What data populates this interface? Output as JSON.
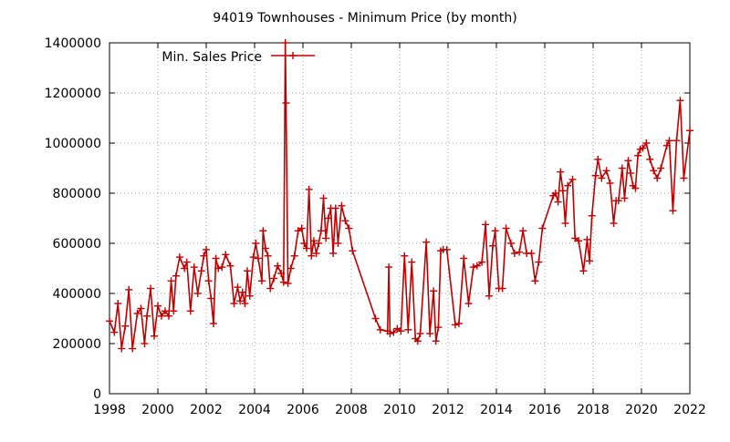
{
  "chart_data": {
    "type": "line",
    "title": "94019 Townhouses - Minimum Price (by month)",
    "xlabel": "",
    "ylabel": "",
    "xlim": [
      1998,
      2022
    ],
    "ylim": [
      0,
      1400000
    ],
    "x_ticks": [
      1998,
      2000,
      2002,
      2004,
      2006,
      2008,
      2010,
      2012,
      2014,
      2016,
      2018,
      2020,
      2022
    ],
    "y_ticks": [
      0,
      200000,
      400000,
      600000,
      800000,
      1000000,
      1200000,
      1400000
    ],
    "x_tick_labels": [
      "1998",
      "2000",
      "2002",
      "2004",
      "2006",
      "2008",
      "2010",
      "2012",
      "2014",
      "2016",
      "2018",
      "2020",
      "2022"
    ],
    "y_tick_labels": [
      "0",
      "200000",
      "400000",
      "600000",
      "800000",
      "1000000",
      "1200000",
      "1400000"
    ],
    "grid": true,
    "legend_position": "top-left",
    "color": "#c00000",
    "series": [
      {
        "name": "Min. Sales Price",
        "points": [
          [
            1998.0,
            290000
          ],
          [
            1998.2,
            245000
          ],
          [
            1998.35,
            360000
          ],
          [
            1998.5,
            180000
          ],
          [
            1998.65,
            270000
          ],
          [
            1998.8,
            415000
          ],
          [
            1998.95,
            180000
          ],
          [
            1999.15,
            320000
          ],
          [
            1999.3,
            340000
          ],
          [
            1999.45,
            200000
          ],
          [
            1999.55,
            310000
          ],
          [
            1999.7,
            420000
          ],
          [
            1999.85,
            230000
          ],
          [
            2000.0,
            350000
          ],
          [
            2000.15,
            310000
          ],
          [
            2000.3,
            330000
          ],
          [
            2000.45,
            310000
          ],
          [
            2000.55,
            450000
          ],
          [
            2000.65,
            330000
          ],
          [
            2000.75,
            470000
          ],
          [
            2000.9,
            545000
          ],
          [
            2001.1,
            500000
          ],
          [
            2001.2,
            525000
          ],
          [
            2001.35,
            330000
          ],
          [
            2001.5,
            505000
          ],
          [
            2001.65,
            400000
          ],
          [
            2001.8,
            490000
          ],
          [
            2001.9,
            550000
          ],
          [
            2002.0,
            575000
          ],
          [
            2002.1,
            450000
          ],
          [
            2002.2,
            380000
          ],
          [
            2002.3,
            280000
          ],
          [
            2002.4,
            540000
          ],
          [
            2002.5,
            500000
          ],
          [
            2002.65,
            505000
          ],
          [
            2002.8,
            555000
          ],
          [
            2003.0,
            510000
          ],
          [
            2003.15,
            360000
          ],
          [
            2003.3,
            425000
          ],
          [
            2003.4,
            370000
          ],
          [
            2003.5,
            405000
          ],
          [
            2003.6,
            360000
          ],
          [
            2003.7,
            490000
          ],
          [
            2003.8,
            390000
          ],
          [
            2003.95,
            545000
          ],
          [
            2004.05,
            600000
          ],
          [
            2004.15,
            540000
          ],
          [
            2004.3,
            450000
          ],
          [
            2004.35,
            650000
          ],
          [
            2004.45,
            580000
          ],
          [
            2004.55,
            550000
          ],
          [
            2004.65,
            420000
          ],
          [
            2004.8,
            460000
          ],
          [
            2004.95,
            510000
          ],
          [
            2005.1,
            480000
          ],
          [
            2005.2,
            445000
          ],
          [
            2005.27,
            1400000
          ],
          [
            2005.3,
            1160000
          ],
          [
            2005.38,
            440000
          ],
          [
            2005.5,
            500000
          ],
          [
            2005.65,
            550000
          ],
          [
            2005.8,
            650000
          ],
          [
            2005.95,
            660000
          ],
          [
            2006.05,
            600000
          ],
          [
            2006.15,
            580000
          ],
          [
            2006.25,
            815000
          ],
          [
            2006.35,
            550000
          ],
          [
            2006.45,
            610000
          ],
          [
            2006.55,
            560000
          ],
          [
            2006.65,
            600000
          ],
          [
            2006.75,
            650000
          ],
          [
            2006.85,
            780000
          ],
          [
            2006.95,
            620000
          ],
          [
            2007.05,
            700000
          ],
          [
            2007.15,
            740000
          ],
          [
            2007.25,
            560000
          ],
          [
            2007.35,
            740000
          ],
          [
            2007.45,
            600000
          ],
          [
            2007.6,
            750000
          ],
          [
            2007.75,
            690000
          ],
          [
            2007.9,
            660000
          ],
          [
            2008.05,
            570000
          ],
          [
            2009.0,
            300000
          ],
          [
            2009.2,
            255000
          ],
          [
            2009.5,
            250000
          ],
          [
            2009.55,
            505000
          ],
          [
            2009.6,
            240000
          ],
          [
            2009.75,
            245000
          ],
          [
            2009.9,
            260000
          ],
          [
            2010.05,
            250000
          ],
          [
            2010.2,
            550000
          ],
          [
            2010.35,
            255000
          ],
          [
            2010.5,
            525000
          ],
          [
            2010.65,
            220000
          ],
          [
            2010.75,
            210000
          ],
          [
            2010.85,
            240000
          ],
          [
            2011.1,
            605000
          ],
          [
            2011.25,
            240000
          ],
          [
            2011.4,
            410000
          ],
          [
            2011.5,
            210000
          ],
          [
            2011.6,
            265000
          ],
          [
            2011.7,
            570000
          ],
          [
            2011.8,
            575000
          ],
          [
            2011.95,
            575000
          ],
          [
            2012.3,
            275000
          ],
          [
            2012.45,
            280000
          ],
          [
            2012.65,
            540000
          ],
          [
            2012.85,
            360000
          ],
          [
            2013.05,
            505000
          ],
          [
            2013.2,
            510000
          ],
          [
            2013.4,
            525000
          ],
          [
            2013.55,
            675000
          ],
          [
            2013.7,
            390000
          ],
          [
            2013.85,
            590000
          ],
          [
            2013.95,
            650000
          ],
          [
            2014.1,
            420000
          ],
          [
            2014.25,
            420000
          ],
          [
            2014.4,
            660000
          ],
          [
            2014.6,
            600000
          ],
          [
            2014.75,
            560000
          ],
          [
            2014.95,
            565000
          ],
          [
            2015.1,
            650000
          ],
          [
            2015.25,
            560000
          ],
          [
            2015.45,
            560000
          ],
          [
            2015.6,
            450000
          ],
          [
            2015.75,
            525000
          ],
          [
            2015.9,
            660000
          ],
          [
            2016.35,
            790000
          ],
          [
            2016.45,
            800000
          ],
          [
            2016.55,
            765000
          ],
          [
            2016.65,
            885000
          ],
          [
            2016.75,
            810000
          ],
          [
            2016.85,
            680000
          ],
          [
            2016.95,
            830000
          ],
          [
            2017.15,
            855000
          ],
          [
            2017.25,
            620000
          ],
          [
            2017.4,
            610000
          ],
          [
            2017.6,
            490000
          ],
          [
            2017.75,
            615000
          ],
          [
            2017.85,
            530000
          ],
          [
            2017.95,
            710000
          ],
          [
            2018.1,
            870000
          ],
          [
            2018.2,
            935000
          ],
          [
            2018.35,
            860000
          ],
          [
            2018.55,
            890000
          ],
          [
            2018.7,
            840000
          ],
          [
            2018.85,
            680000
          ],
          [
            2018.95,
            770000
          ],
          [
            2019.05,
            770000
          ],
          [
            2019.2,
            900000
          ],
          [
            2019.3,
            780000
          ],
          [
            2019.45,
            930000
          ],
          [
            2019.55,
            880000
          ],
          [
            2019.65,
            830000
          ],
          [
            2019.75,
            820000
          ],
          [
            2019.85,
            950000
          ],
          [
            2019.95,
            975000
          ],
          [
            2020.05,
            980000
          ],
          [
            2020.2,
            1000000
          ],
          [
            2020.35,
            935000
          ],
          [
            2020.5,
            890000
          ],
          [
            2020.65,
            860000
          ],
          [
            2020.8,
            900000
          ],
          [
            2021.05,
            990000
          ],
          [
            2021.15,
            1010000
          ],
          [
            2021.3,
            730000
          ],
          [
            2021.45,
            1010000
          ],
          [
            2021.6,
            1170000
          ],
          [
            2021.75,
            860000
          ],
          [
            2022.0,
            1050000
          ]
        ]
      }
    ]
  }
}
